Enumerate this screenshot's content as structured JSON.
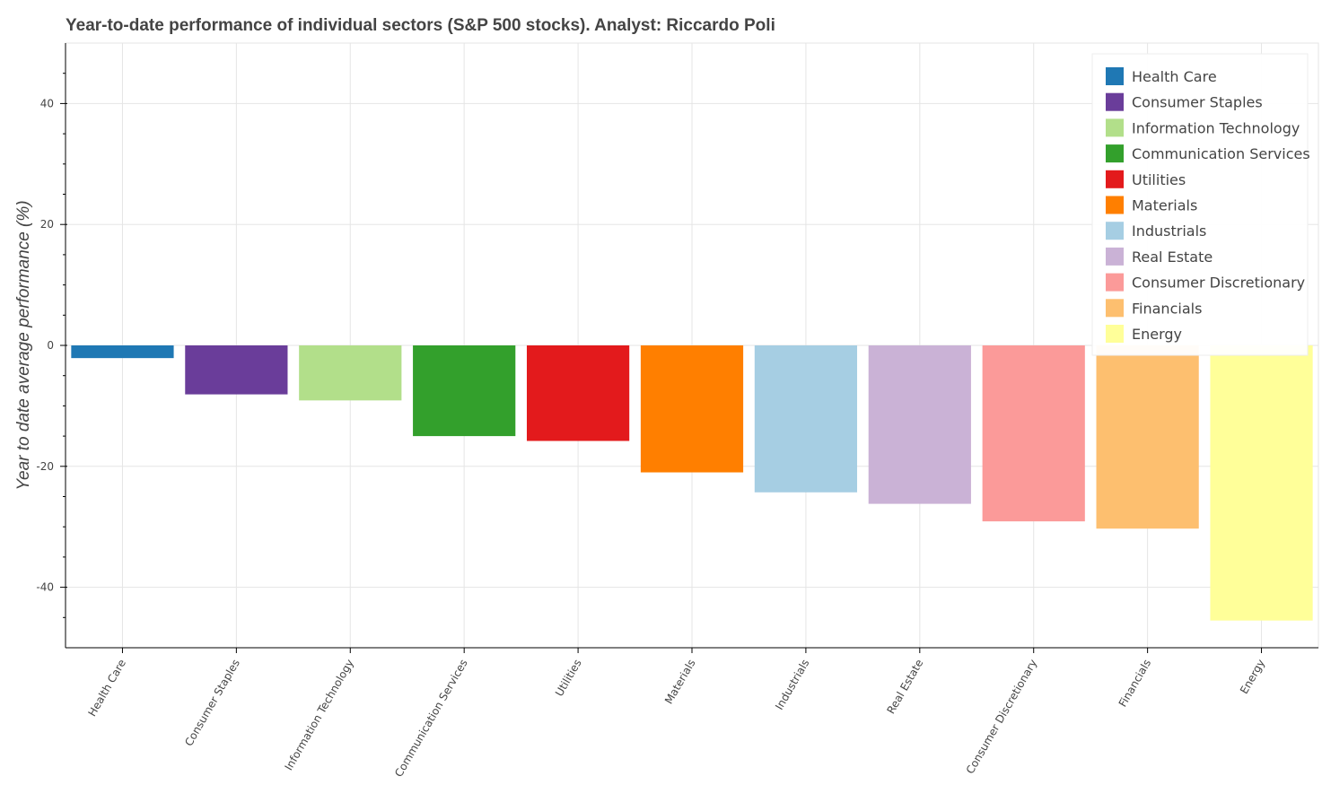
{
  "chart_data": {
    "type": "bar",
    "title": "Year-to-date performance of individual sectors (S&P 500 stocks). Analyst: Riccardo Poli",
    "xlabel": "",
    "ylabel": "Year to date average performance (%)",
    "ylim": [
      -50,
      50
    ],
    "yticks": [
      -40,
      -20,
      0,
      20,
      40
    ],
    "grid": true,
    "legend_position": "top-right",
    "categories": [
      "Health Care",
      "Consumer Staples",
      "Information Technology",
      "Communication Services",
      "Utilities",
      "Materials",
      "Industrials",
      "Real Estate",
      "Consumer Discretionary",
      "Financials",
      "Energy"
    ],
    "values": [
      -2.1,
      -8.1,
      -9.1,
      -15.0,
      -15.8,
      -21.0,
      -24.3,
      -26.2,
      -29.1,
      -30.3,
      -45.5
    ],
    "colors": [
      "#1f78b4",
      "#6a3d9a",
      "#b2df8a",
      "#33a02c",
      "#e31a1c",
      "#ff7f00",
      "#a6cee3",
      "#cab2d6",
      "#fb9a99",
      "#fdbf6f",
      "#ffff99"
    ]
  }
}
